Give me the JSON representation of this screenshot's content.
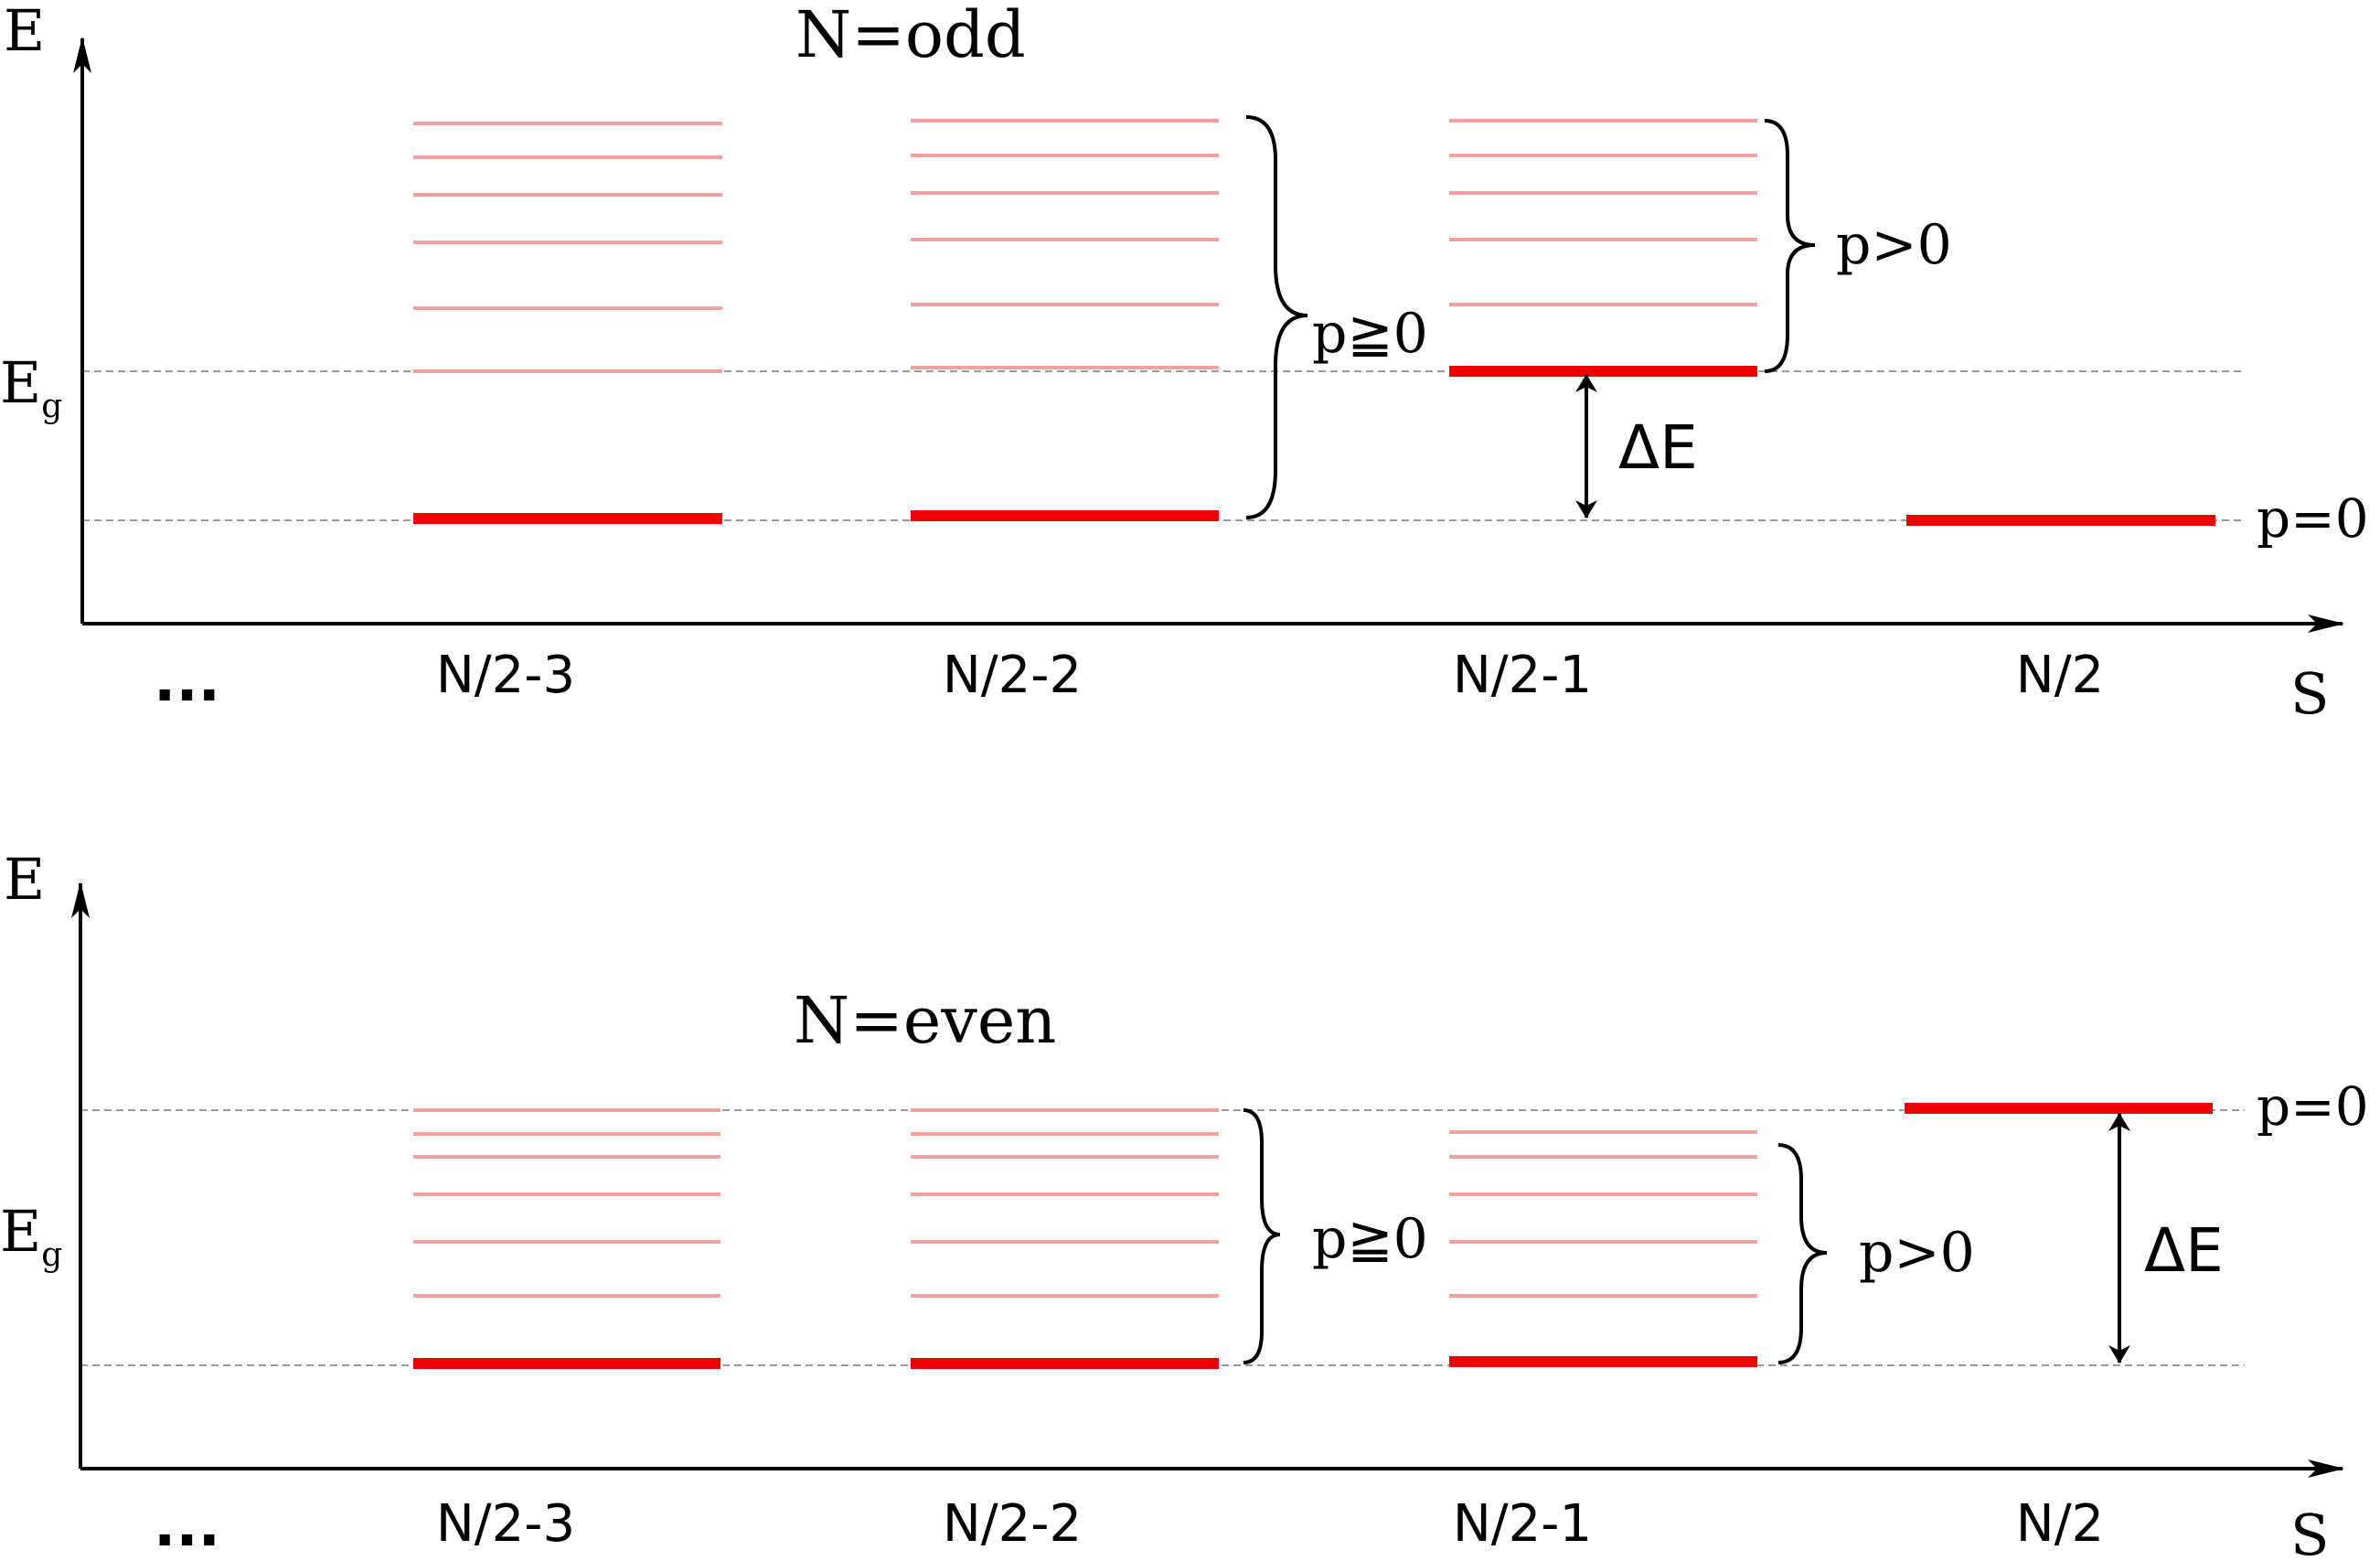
{
  "colors": {
    "ground_level": "#ee0000",
    "excited_level": "#f4a0a0",
    "reference_line": "#999999",
    "axis": "#000000"
  },
  "panels": [
    {
      "title": "N=odd",
      "y_axis_label": "E",
      "y_level_label_base": "E",
      "y_level_label_sub": "g",
      "x_axis_label": "S",
      "ellipsis": "...",
      "x_ticks": [
        "N/2-3",
        "N/2-2",
        "N/2-1",
        "N/2"
      ],
      "brace_labels": [
        "p≧0",
        "p>0"
      ],
      "right_label": "p=0",
      "gap_label": "ΔE"
    },
    {
      "title": "N=even",
      "y_axis_label": "E",
      "y_level_label_base": "E",
      "y_level_label_sub": "g",
      "x_axis_label": "S",
      "ellipsis": "...",
      "x_ticks": [
        "N/2-3",
        "N/2-2",
        "N/2-1",
        "N/2"
      ],
      "brace_labels": [
        "p≧0",
        "p>0"
      ],
      "right_label": "p=0",
      "gap_label": "ΔE"
    }
  ]
}
